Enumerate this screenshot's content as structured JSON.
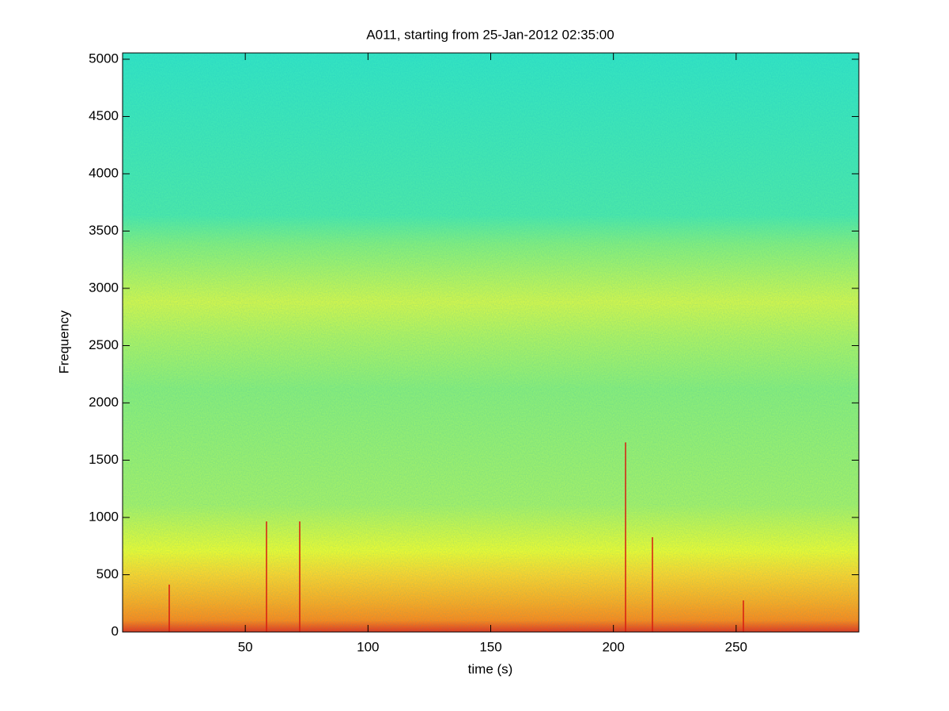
{
  "chart_data": {
    "type": "spectrogram",
    "title": "A011, starting from 25-Jan-2012 02:35:00",
    "x_label": "time (s)",
    "y_label": "Frequency",
    "xlim": [
      0,
      300
    ],
    "ylim": [
      0,
      5055
    ],
    "xticks": [
      50,
      100,
      150,
      200,
      250
    ],
    "yticks": [
      0,
      500,
      1000,
      1500,
      2000,
      2500,
      3000,
      3500,
      4000,
      4500,
      5000
    ],
    "grid": false
  }
}
